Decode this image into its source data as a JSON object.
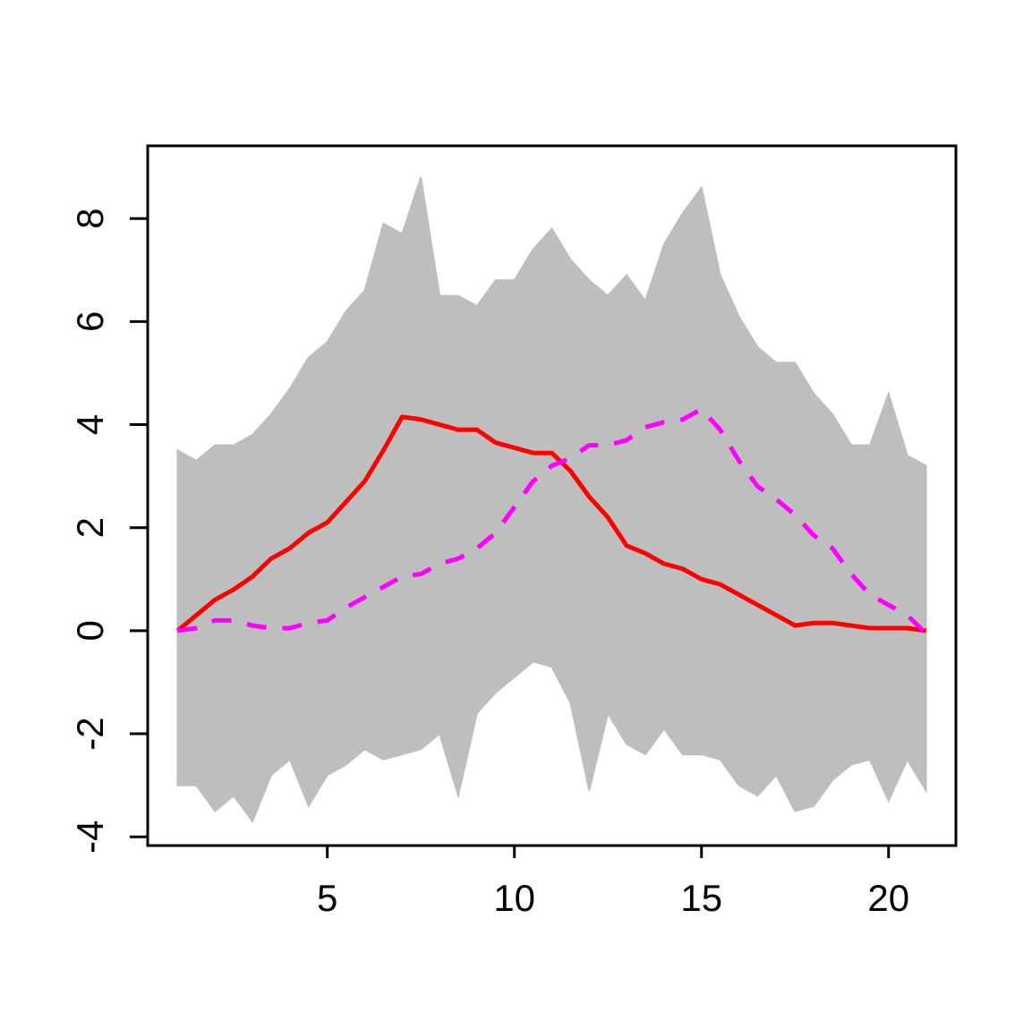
{
  "chart_data": {
    "type": "line",
    "x": [
      1,
      1.5,
      2,
      2.5,
      3,
      3.5,
      4,
      4.5,
      5,
      5.5,
      6,
      6.5,
      7,
      7.5,
      8,
      8.5,
      9,
      9.5,
      10,
      10.5,
      11,
      11.5,
      12,
      12.5,
      13,
      13.5,
      14,
      14.5,
      15,
      15.5,
      16,
      16.5,
      17,
      17.5,
      18,
      18.5,
      19,
      19.5,
      20,
      20.5,
      21
    ],
    "band": {
      "color": "#bebebe",
      "upper": [
        3.5,
        3.3,
        3.6,
        3.6,
        3.8,
        4.2,
        4.7,
        5.3,
        5.6,
        6.2,
        6.6,
        7.9,
        7.7,
        8.8,
        6.5,
        6.5,
        6.3,
        6.8,
        6.8,
        7.4,
        7.8,
        7.2,
        6.8,
        6.5,
        6.9,
        6.4,
        7.5,
        8.1,
        8.6,
        6.9,
        6.1,
        5.5,
        5.2,
        5.2,
        4.6,
        4.2,
        3.6,
        3.6,
        4.6,
        3.4,
        3.2
      ],
      "lower": [
        -3.0,
        -3.0,
        -3.5,
        -3.2,
        -3.7,
        -2.8,
        -2.5,
        -3.4,
        -2.8,
        -2.6,
        -2.3,
        -2.5,
        -2.4,
        -2.3,
        -2.0,
        -3.2,
        -1.6,
        -1.2,
        -0.9,
        -0.6,
        -0.7,
        -1.4,
        -3.1,
        -1.6,
        -2.2,
        -2.4,
        -1.9,
        -2.4,
        -2.4,
        -2.5,
        -3.0,
        -3.2,
        -2.8,
        -3.5,
        -3.4,
        -2.9,
        -2.6,
        -2.5,
        -3.3,
        -2.5,
        -3.1
      ]
    },
    "series": [
      {
        "color": "#ff0000",
        "dashed": false,
        "values": [
          0,
          0.3,
          0.6,
          0.8,
          1.05,
          1.4,
          1.6,
          1.9,
          2.1,
          2.5,
          2.9,
          3.5,
          4.15,
          4.1,
          4.0,
          3.9,
          3.9,
          3.65,
          3.55,
          3.45,
          3.45,
          3.1,
          2.6,
          2.2,
          1.65,
          1.5,
          1.3,
          1.2,
          1.0,
          0.9,
          0.7,
          0.5,
          0.3,
          0.1,
          0.15,
          0.15,
          0.1,
          0.05,
          0.05,
          0.05,
          0
        ]
      },
      {
        "color": "#ff00ff",
        "dashed": true,
        "values": [
          0,
          0.05,
          0.2,
          0.2,
          0.1,
          0.05,
          0.05,
          0.15,
          0.2,
          0.45,
          0.65,
          0.85,
          1.05,
          1.1,
          1.3,
          1.4,
          1.6,
          1.9,
          2.4,
          2.9,
          3.2,
          3.35,
          3.6,
          3.6,
          3.7,
          3.95,
          4.05,
          4.1,
          4.3,
          3.9,
          3.3,
          2.8,
          2.55,
          2.25,
          1.85,
          1.6,
          1.1,
          0.7,
          0.5,
          0.3,
          -0.05
        ]
      }
    ],
    "xlim": [
      0.2,
      21.8
    ],
    "ylim": [
      -4.17,
      9.41
    ],
    "xticks": [
      5,
      10,
      15,
      20
    ],
    "yticks": [
      -4,
      -2,
      0,
      2,
      4,
      6,
      8
    ]
  }
}
